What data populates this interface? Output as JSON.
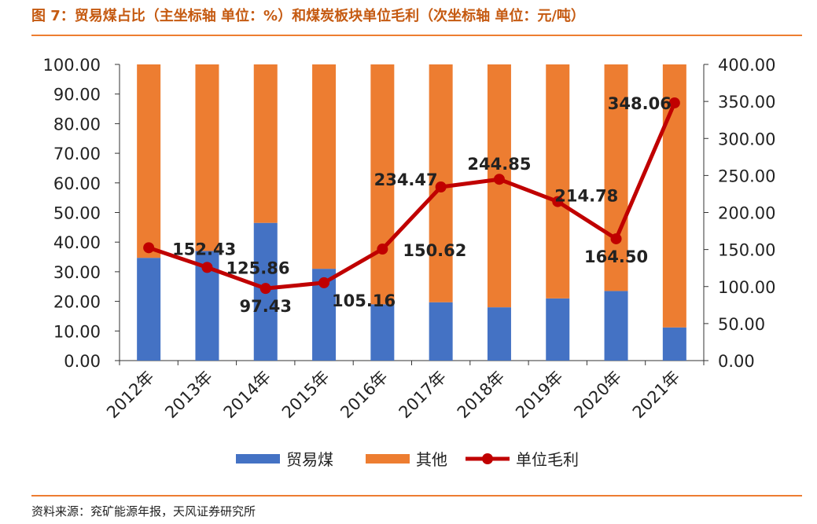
{
  "header": {
    "title": "图 7：贸易煤占比（主坐标轴 单位：%）和煤炭板块单位毛利（次坐标轴 单位：元/吨）"
  },
  "footer": {
    "source": "资料来源：兖矿能源年报，天风证券研究所"
  },
  "chart_data": {
    "type": "bar",
    "stacked": true,
    "categories": [
      "2012年",
      "2013年",
      "2014年",
      "2015年",
      "2016年",
      "2017年",
      "2018年",
      "2019年",
      "2020年",
      "2021年"
    ],
    "series": [
      {
        "name": "贸易煤",
        "type": "bar",
        "axis": "primary",
        "color": "#4472c4",
        "values": [
          34.7,
          37.0,
          46.5,
          31.0,
          19.0,
          19.7,
          18.0,
          21.0,
          23.5,
          11.2
        ]
      },
      {
        "name": "其他",
        "type": "bar",
        "axis": "primary",
        "color": "#ed7d31",
        "values": [
          65.3,
          63.0,
          53.5,
          69.0,
          81.0,
          80.3,
          82.0,
          79.0,
          76.5,
          88.8
        ]
      },
      {
        "name": "单位毛利",
        "type": "line",
        "axis": "secondary",
        "color": "#c00000",
        "values": [
          152.43,
          125.86,
          97.43,
          105.16,
          150.62,
          234.47,
          244.85,
          214.78,
          164.5,
          348.06
        ],
        "labels": [
          "152.43",
          "125.86",
          "97.43",
          "105.16",
          "150.62",
          "234.47",
          "244.85",
          "214.78",
          "164.50",
          "348.06"
        ]
      }
    ],
    "primary_axis": {
      "ylim": [
        0,
        100
      ],
      "ticks": [
        "0.00",
        "10.00",
        "20.00",
        "30.00",
        "40.00",
        "50.00",
        "60.00",
        "70.00",
        "80.00",
        "90.00",
        "100.00"
      ]
    },
    "secondary_axis": {
      "ylim": [
        0,
        400
      ],
      "ticks": [
        "0.00",
        "50.00",
        "100.00",
        "150.00",
        "200.00",
        "250.00",
        "300.00",
        "350.00",
        "400.00"
      ]
    },
    "legend": {
      "placement": "bottom-center",
      "items": [
        "贸易煤",
        "其他",
        "单位毛利"
      ]
    },
    "grid": false
  }
}
